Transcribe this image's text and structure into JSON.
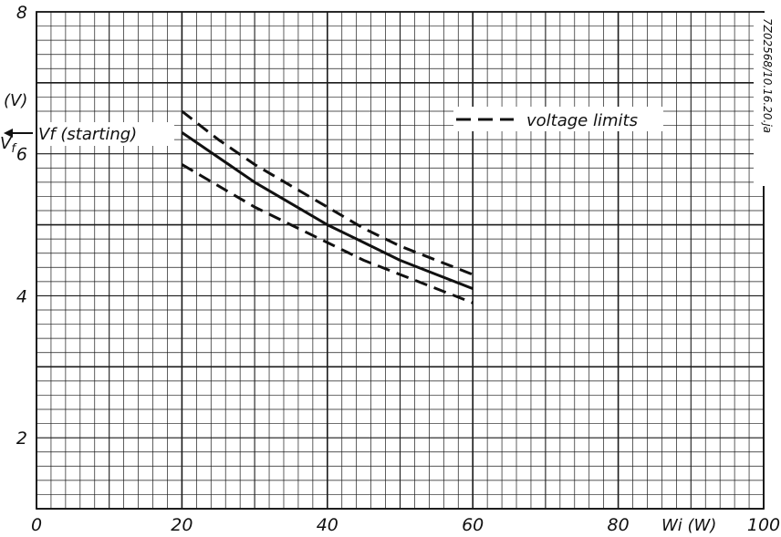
{
  "chart_data": {
    "type": "line",
    "title": "",
    "xlabel": "Wi (W)",
    "ylabel_symbol": "Vf",
    "ylabel_unit": "(V)",
    "xlim": [
      0,
      100
    ],
    "ylim": [
      1,
      8
    ],
    "x_ticks": [
      {
        "value": 0,
        "label": "0"
      },
      {
        "value": 20,
        "label": "20"
      },
      {
        "value": 40,
        "label": "40"
      },
      {
        "value": 60,
        "label": "60"
      },
      {
        "value": 80,
        "label": "80"
      },
      {
        "value": 100,
        "label": "100"
      }
    ],
    "y_ticks": [
      {
        "value": 2,
        "label": "2"
      },
      {
        "value": 4,
        "label": "4"
      },
      {
        "value": 6,
        "label": "6"
      },
      {
        "value": 8,
        "label": "8"
      }
    ],
    "grid": true,
    "legend": {
      "label": "voltage limits",
      "style": "dashed",
      "position": "top-right"
    },
    "series": [
      {
        "style": "solid",
        "x": [
          20,
          25,
          30,
          35,
          40,
          45,
          50,
          55,
          60
        ],
        "y": [
          6.3,
          5.95,
          5.6,
          5.3,
          5.0,
          4.75,
          4.5,
          4.3,
          4.1
        ]
      },
      {
        "style": "dashed",
        "x": [
          20,
          25,
          30,
          35,
          40,
          45,
          50,
          55,
          60
        ],
        "y": [
          6.6,
          6.2,
          5.85,
          5.55,
          5.25,
          4.95,
          4.7,
          4.5,
          4.3
        ]
      },
      {
        "style": "dashed",
        "x": [
          20,
          25,
          30,
          35,
          40,
          45,
          50,
          55,
          60
        ],
        "y": [
          5.85,
          5.55,
          5.25,
          5.0,
          4.75,
          4.5,
          4.3,
          4.1,
          3.9
        ]
      }
    ],
    "annotations": [
      {
        "text": "Vf (starting)",
        "y": 6.35
      }
    ],
    "side_label": "7Z02568/10.16.20.ja"
  }
}
